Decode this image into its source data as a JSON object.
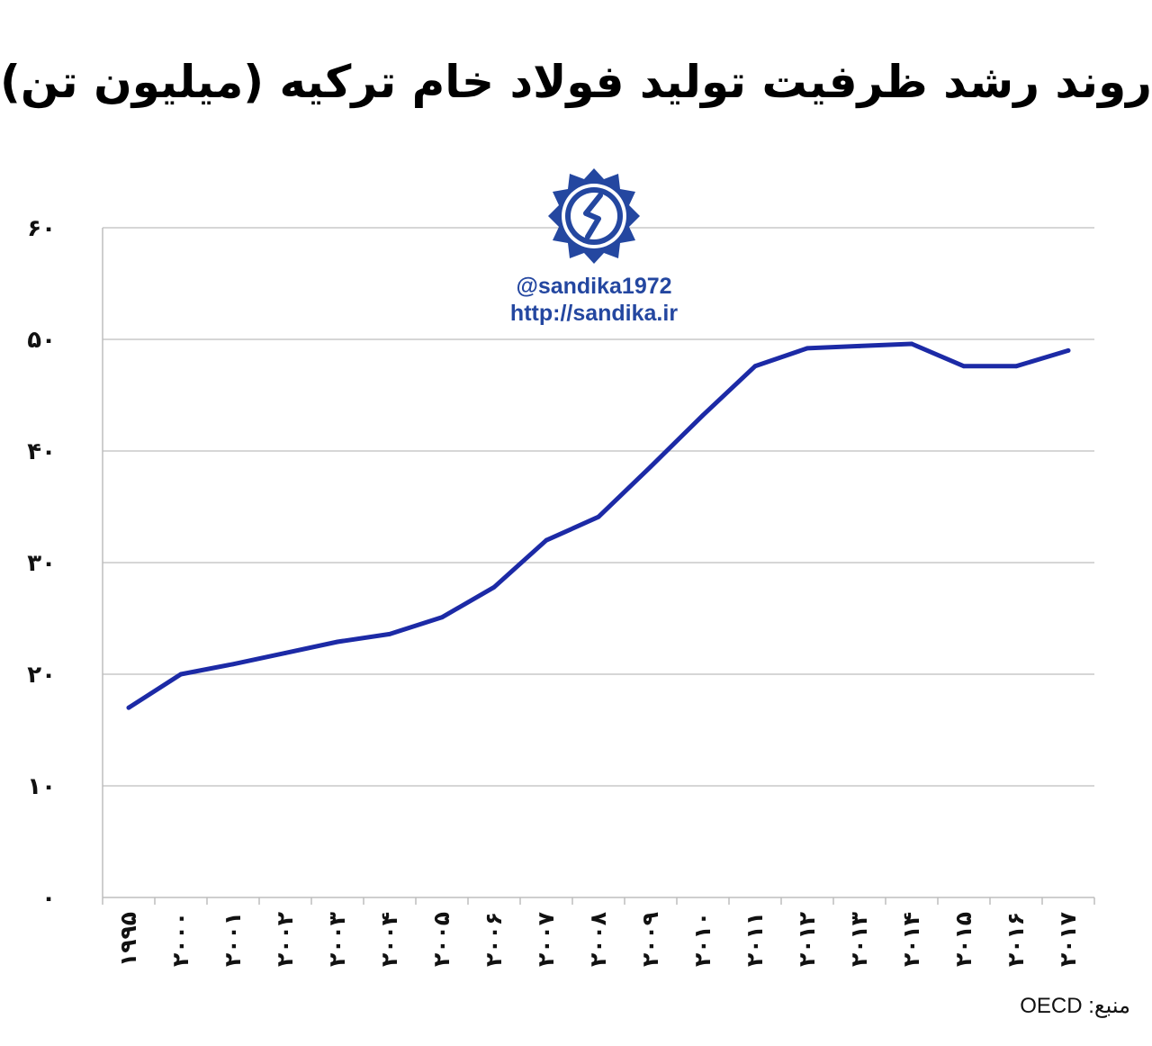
{
  "chart_data": {
    "type": "line",
    "title": "روند رشد ظرفیت تولید فولاد خام ترکیه (میلیون تن)",
    "xlabel": "",
    "ylabel": "",
    "ylim": [
      0,
      60
    ],
    "yticks": [
      "۰",
      "۱۰",
      "۲۰",
      "۳۰",
      "۴۰",
      "۵۰",
      "۶۰"
    ],
    "ytick_values": [
      0,
      10,
      20,
      30,
      40,
      50,
      60
    ],
    "categories": [
      "۱۹۹۵",
      "۲۰۰۰",
      "۲۰۰۱",
      "۲۰۰۲",
      "۲۰۰۳",
      "۲۰۰۴",
      "۲۰۰۵",
      "۲۰۰۶",
      "۲۰۰۷",
      "۲۰۰۸",
      "۲۰۰۹",
      "۲۰۱۰",
      "۲۰۱۱",
      "۲۰۱۲",
      "۲۰۱۳",
      "۲۰۱۴",
      "۲۰۱۵",
      "۲۰۱۶",
      "۲۰۱۷"
    ],
    "series": [
      {
        "values": [
          17.0,
          20.0,
          20.9,
          21.9,
          22.9,
          23.6,
          25.1,
          27.8,
          32.0,
          34.1,
          38.6,
          43.2,
          47.6,
          49.2,
          49.4,
          49.6,
          47.6,
          47.6,
          49.0
        ],
        "color": "#1c2aa6"
      }
    ],
    "grid": true,
    "legend": "none"
  },
  "watermark": {
    "handle": "@sandika1972",
    "url": "http://sandika.ir",
    "logo_icon": "sandika-logo-icon"
  },
  "source_note": "منبع: OECD",
  "colors": {
    "line": "#1c2aa6",
    "grid": "#bdbdbd",
    "brand": "#2447a0"
  }
}
